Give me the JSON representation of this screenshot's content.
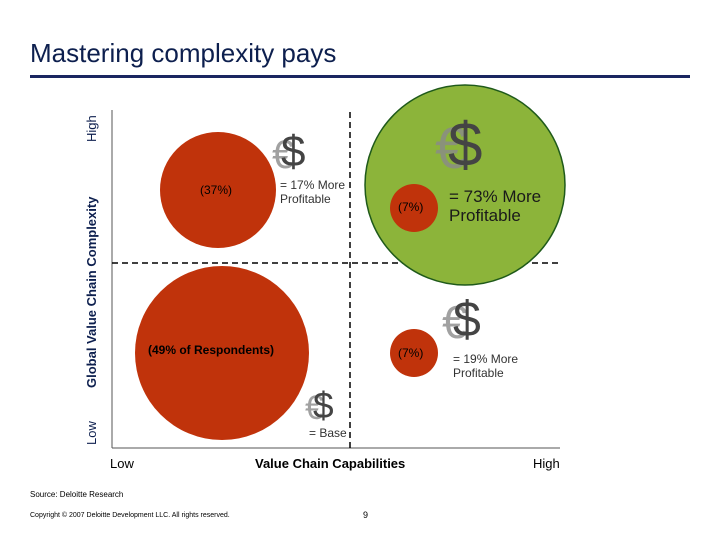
{
  "title": "Mastering complexity pays",
  "axes": {
    "y_title": "Global Value Chain Complexity",
    "y_high": "High",
    "y_low": "Low",
    "x_title": "Value Chain Capabilities",
    "x_low": "Low",
    "x_high": "High"
  },
  "quadrants": {
    "top_left": {
      "share": "(37%)",
      "note": "= 17% More Profitable"
    },
    "top_right": {
      "share": "(7%)",
      "note": "= 73% More Profitable"
    },
    "bottom_left": {
      "share": "(49% of Respondents)"
    },
    "bottom_right": {
      "share": "(7%)",
      "note": "= 19% More Profitable"
    },
    "base_note": "= Base"
  },
  "colors": {
    "bubble_red": "#c0330b",
    "bubble_green": "#8cb43a",
    "green_outline": "#1f5a1a",
    "rule_navy": "#1a2660"
  },
  "icon": "euro-dollar-icon",
  "footer": {
    "source": "Source: Deloitte Research",
    "copyright": "Copyright © 2007 Deloitte Development LLC. All rights reserved.",
    "page": "9"
  }
}
